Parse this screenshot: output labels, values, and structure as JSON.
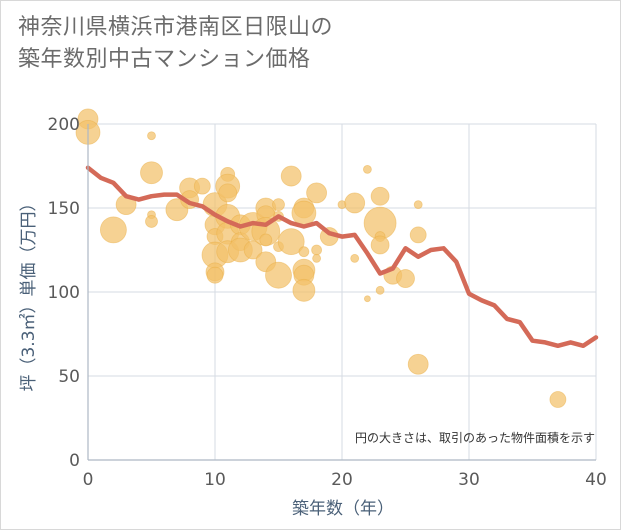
{
  "title_lines": [
    "神奈川県横浜市港南区日限山の",
    "築年数別中古マンション価格"
  ],
  "colors": {
    "bubble": "#f2c06a",
    "bubble_edge": "#e9ad44",
    "line": "#d46a58",
    "grid": "#d5dbe3",
    "axis": "#aeb8c4"
  },
  "chart_data": {
    "type": "scatter",
    "title": "神奈川県横浜市港南区日限山の築年数別中古マンション価格",
    "xlabel": "築年数（年）",
    "ylabel": "坪（3.3㎡）単価（万円）",
    "xlim": [
      0,
      40
    ],
    "ylim": [
      0,
      200
    ],
    "xticks": [
      0,
      10,
      20,
      30,
      40
    ],
    "yticks": [
      0,
      50,
      100,
      150,
      200
    ],
    "grid": true,
    "note": "円の大きさは、取引のあった物件面積を示す",
    "bubbles": [
      {
        "x": 0,
        "y": 203,
        "r": 10
      },
      {
        "x": 0,
        "y": 195,
        "r": 12
      },
      {
        "x": 2,
        "y": 137,
        "r": 13
      },
      {
        "x": 3,
        "y": 152,
        "r": 10
      },
      {
        "x": 5,
        "y": 193,
        "r": 4
      },
      {
        "x": 5,
        "y": 171,
        "r": 11
      },
      {
        "x": 5,
        "y": 146,
        "r": 4
      },
      {
        "x": 5,
        "y": 142,
        "r": 6
      },
      {
        "x": 7,
        "y": 149,
        "r": 11
      },
      {
        "x": 8,
        "y": 162,
        "r": 10
      },
      {
        "x": 8,
        "y": 155,
        "r": 9
      },
      {
        "x": 9,
        "y": 163,
        "r": 8
      },
      {
        "x": 10,
        "y": 152,
        "r": 12
      },
      {
        "x": 10,
        "y": 140,
        "r": 10
      },
      {
        "x": 10,
        "y": 133,
        "r": 8
      },
      {
        "x": 10,
        "y": 122,
        "r": 13
      },
      {
        "x": 10,
        "y": 112,
        "r": 9
      },
      {
        "x": 10,
        "y": 110,
        "r": 8
      },
      {
        "x": 11,
        "y": 170,
        "r": 7
      },
      {
        "x": 11,
        "y": 163,
        "r": 12
      },
      {
        "x": 11,
        "y": 159,
        "r": 9
      },
      {
        "x": 11,
        "y": 145,
        "r": 12
      },
      {
        "x": 11,
        "y": 135,
        "r": 11
      },
      {
        "x": 11,
        "y": 124,
        "r": 11
      },
      {
        "x": 12,
        "y": 140,
        "r": 10
      },
      {
        "x": 12,
        "y": 130,
        "r": 9
      },
      {
        "x": 12,
        "y": 125,
        "r": 12
      },
      {
        "x": 13,
        "y": 139,
        "r": 14
      },
      {
        "x": 13,
        "y": 125,
        "r": 9
      },
      {
        "x": 14,
        "y": 150,
        "r": 10
      },
      {
        "x": 14,
        "y": 146,
        "r": 9
      },
      {
        "x": 14,
        "y": 136,
        "r": 14
      },
      {
        "x": 14,
        "y": 131,
        "r": 6
      },
      {
        "x": 14,
        "y": 118,
        "r": 10
      },
      {
        "x": 15,
        "y": 152,
        "r": 6
      },
      {
        "x": 15,
        "y": 145,
        "r": 5
      },
      {
        "x": 15,
        "y": 127,
        "r": 5
      },
      {
        "x": 15,
        "y": 110,
        "r": 13
      },
      {
        "x": 16,
        "y": 169,
        "r": 10
      },
      {
        "x": 16,
        "y": 130,
        "r": 13
      },
      {
        "x": 17,
        "y": 150,
        "r": 10
      },
      {
        "x": 17,
        "y": 147,
        "r": 12
      },
      {
        "x": 17,
        "y": 124,
        "r": 5
      },
      {
        "x": 17,
        "y": 113,
        "r": 11
      },
      {
        "x": 17,
        "y": 110,
        "r": 10
      },
      {
        "x": 17,
        "y": 101,
        "r": 11
      },
      {
        "x": 18,
        "y": 159,
        "r": 10
      },
      {
        "x": 18,
        "y": 125,
        "r": 5
      },
      {
        "x": 18,
        "y": 120,
        "r": 4
      },
      {
        "x": 19,
        "y": 133,
        "r": 9
      },
      {
        "x": 20,
        "y": 152,
        "r": 4
      },
      {
        "x": 21,
        "y": 153,
        "r": 10
      },
      {
        "x": 21,
        "y": 120,
        "r": 4
      },
      {
        "x": 22,
        "y": 173,
        "r": 4
      },
      {
        "x": 22,
        "y": 96,
        "r": 3
      },
      {
        "x": 23,
        "y": 157,
        "r": 9
      },
      {
        "x": 23,
        "y": 141,
        "r": 16
      },
      {
        "x": 23,
        "y": 133,
        "r": 5
      },
      {
        "x": 23,
        "y": 128,
        "r": 9
      },
      {
        "x": 23,
        "y": 101,
        "r": 4
      },
      {
        "x": 24,
        "y": 110,
        "r": 9
      },
      {
        "x": 25,
        "y": 108,
        "r": 9
      },
      {
        "x": 26,
        "y": 152,
        "r": 4
      },
      {
        "x": 26,
        "y": 134,
        "r": 8
      },
      {
        "x": 26,
        "y": 57,
        "r": 10
      },
      {
        "x": 37,
        "y": 36,
        "r": 8
      }
    ],
    "series": [
      {
        "x": [
          0,
          1,
          2,
          3,
          4,
          5,
          6,
          7,
          8,
          9,
          10,
          11,
          12,
          13,
          14,
          15,
          16,
          17,
          18,
          19,
          20,
          21,
          22,
          23,
          24,
          25,
          26,
          27,
          28,
          29,
          30,
          31,
          32,
          33,
          34,
          35,
          36,
          37,
          38,
          39,
          40
        ],
        "values": [
          174,
          168,
          165,
          157,
          155,
          157,
          158,
          158,
          153,
          151,
          146,
          142,
          139,
          141,
          140,
          145,
          141,
          139,
          141,
          135,
          133,
          134,
          123,
          111,
          114,
          126,
          121,
          125,
          126,
          118,
          99,
          95,
          92,
          84,
          82,
          71,
          70,
          68,
          70,
          68,
          73
        ]
      }
    ]
  }
}
